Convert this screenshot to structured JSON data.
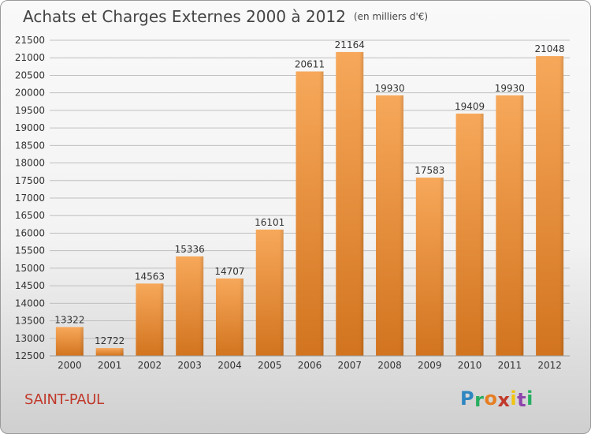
{
  "title": "Achats et Charges Externes 2000 à 2012",
  "unit": "(en milliers d'€)",
  "city": "SAINT-PAUL",
  "logo": {
    "text": "Proxiti",
    "letters": [
      {
        "ch": "P",
        "color": "#2e86c1"
      },
      {
        "ch": "r",
        "color": "#27ae60"
      },
      {
        "ch": "o",
        "color": "#e67e22"
      },
      {
        "ch": "x",
        "color": "#c0392b"
      },
      {
        "ch": "i",
        "color": "#f1c40f"
      },
      {
        "ch": "t",
        "color": "#8e44ad"
      },
      {
        "ch": "i",
        "color": "#27ae60"
      }
    ]
  },
  "colors": {
    "bar_light": "#f7a85a",
    "bar_dark": "#d2741f",
    "grid": "#bfbfbf",
    "text": "#333333"
  },
  "chart_data": {
    "type": "bar",
    "title": "Achats et Charges Externes 2000 à 2012",
    "subtitle": "(en milliers d'€)",
    "categories": [
      "2000",
      "2001",
      "2002",
      "2003",
      "2004",
      "2005",
      "2006",
      "2007",
      "2008",
      "2009",
      "2010",
      "2011",
      "2012"
    ],
    "values": [
      13322,
      12722,
      14563,
      15336,
      14707,
      16101,
      20611,
      21164,
      19930,
      17583,
      19409,
      19930,
      21048
    ],
    "ylim": [
      12500,
      21500
    ],
    "yticks": [
      12500,
      13000,
      13500,
      14000,
      14500,
      15000,
      15500,
      16000,
      16500,
      17000,
      17500,
      18000,
      18500,
      19000,
      19500,
      20000,
      20500,
      21000,
      21500
    ],
    "grid": true,
    "data_labels": true
  }
}
